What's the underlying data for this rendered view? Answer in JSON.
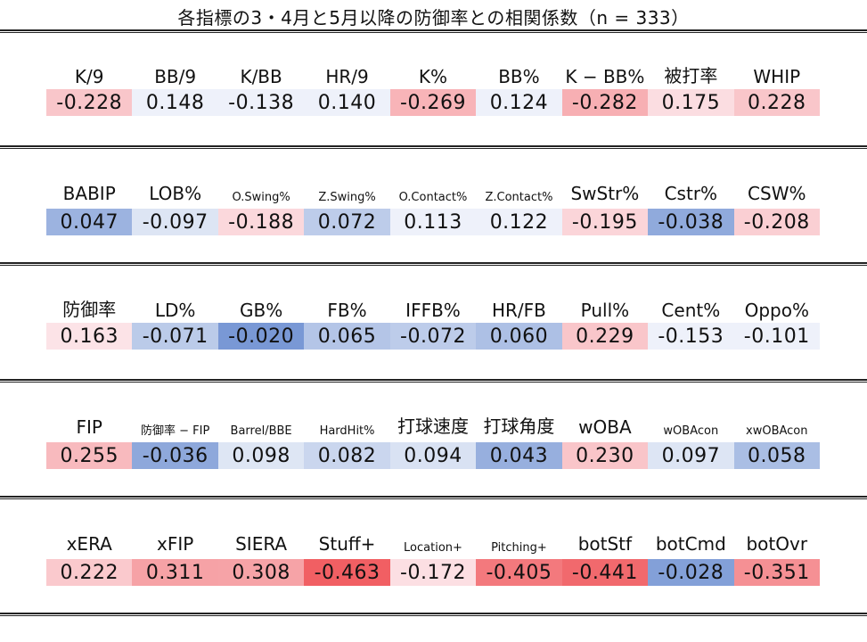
{
  "title": "各指標の3・4月と5月以降の防御率との相関係数（n = 333）",
  "sections": [
    {
      "headers": [
        "K/9",
        "BB/9",
        "K/BB",
        "HR/9",
        "K%",
        "BB%",
        "K − BB%",
        "被打率",
        "WHIP"
      ],
      "values": [
        "-0.228",
        "0.148",
        "-0.138",
        "0.140",
        "-0.269",
        "0.124",
        "-0.282",
        "0.175",
        "0.228"
      ]
    },
    {
      "headers": [
        "BABIP",
        "LOB%",
        "O.Swing%",
        "Z.Swing%",
        "O.Contact%",
        "Z.Contact%",
        "SwStr%",
        "Cstr%",
        "CSW%"
      ],
      "values": [
        "0.047",
        "-0.097",
        "-0.188",
        "0.072",
        "0.113",
        "0.122",
        "-0.195",
        "-0.038",
        "-0.208"
      ]
    },
    {
      "headers": [
        "防御率",
        "LD%",
        "GB%",
        "FB%",
        "IFFB%",
        "HR/FB",
        "Pull%",
        "Cent%",
        "Oppo%"
      ],
      "values": [
        "0.163",
        "-0.071",
        "-0.020",
        "0.065",
        "-0.072",
        "0.060",
        "0.229",
        "-0.153",
        "-0.101"
      ]
    },
    {
      "headers": [
        "FIP",
        "防御率 − FIP",
        "Barrel/BBE",
        "HardHit%",
        "打球速度",
        "打球角度",
        "wOBA",
        "wOBAcon",
        "xwOBAcon"
      ],
      "values": [
        "0.255",
        "-0.036",
        "0.098",
        "0.082",
        "0.094",
        "0.043",
        "0.230",
        "0.097",
        "0.058"
      ]
    },
    {
      "headers": [
        "xERA",
        "xFIP",
        "SIERA",
        "Stuff+",
        "Location+",
        "Pitching+",
        "botStf",
        "botCmd",
        "botOvr"
      ],
      "values": [
        "0.222",
        "0.311",
        "0.308",
        "-0.463",
        "-0.172",
        "-0.405",
        "-0.441",
        "-0.028",
        "-0.351"
      ]
    }
  ]
}
